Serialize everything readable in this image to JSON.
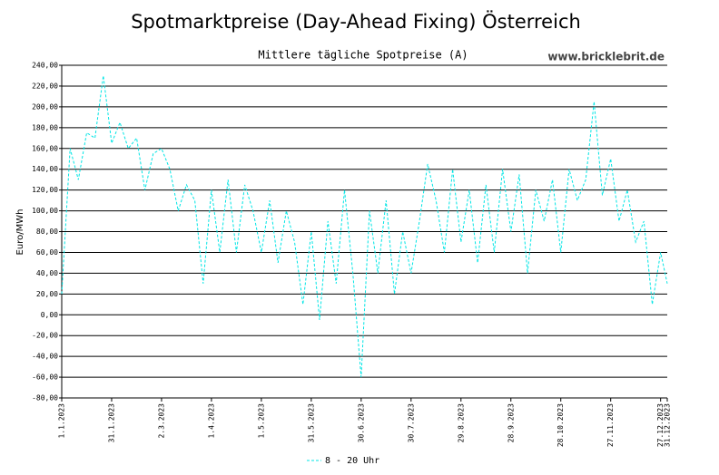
{
  "chart_data": {
    "type": "line",
    "title": "Spotmarktpreise (Day-Ahead Fixing) Österreich",
    "subtitle": "Mittlere tägliche Spotpreise (A)",
    "source": "www.bricklebrit.de",
    "ylabel": "Euro/MWh",
    "x": [
      "1.1.2023",
      "6.1.2023",
      "11.1.2023",
      "16.1.2023",
      "21.1.2023",
      "26.1.2023",
      "31.1.2023",
      "5.2.2023",
      "10.2.2023",
      "15.2.2023",
      "20.2.2023",
      "25.2.2023",
      "2.3.2023",
      "7.3.2023",
      "12.3.2023",
      "17.3.2023",
      "22.3.2023",
      "27.3.2023",
      "1.4.2023",
      "6.4.2023",
      "11.4.2023",
      "16.4.2023",
      "21.4.2023",
      "26.4.2023",
      "1.5.2023",
      "6.5.2023",
      "11.5.2023",
      "16.5.2023",
      "21.5.2023",
      "26.5.2023",
      "31.5.2023",
      "5.6.2023",
      "10.6.2023",
      "15.6.2023",
      "20.6.2023",
      "25.6.2023",
      "30.6.2023",
      "5.7.2023",
      "10.7.2023",
      "15.7.2023",
      "20.7.2023",
      "25.7.2023",
      "30.7.2023",
      "4.8.2023",
      "9.8.2023",
      "14.8.2023",
      "19.8.2023",
      "24.8.2023",
      "29.8.2023",
      "3.9.2023",
      "8.9.2023",
      "13.9.2023",
      "18.9.2023",
      "23.9.2023",
      "28.9.2023",
      "3.10.2023",
      "8.10.2023",
      "13.10.2023",
      "18.10.2023",
      "23.10.2023",
      "28.10.2023",
      "2.11.2023",
      "7.11.2023",
      "12.11.2023",
      "17.11.2023",
      "22.11.2023",
      "27.11.2023",
      "2.12.2023",
      "7.12.2023",
      "12.12.2023",
      "17.12.2023",
      "22.12.2023",
      "27.12.2023",
      "31.12.2023"
    ],
    "series": [
      {
        "name": "8 - 20 Uhr",
        "color": "#00e5e5",
        "values": [
          20,
          160,
          130,
          175,
          170,
          230,
          165,
          185,
          160,
          170,
          120,
          155,
          160,
          140,
          100,
          125,
          110,
          30,
          120,
          60,
          130,
          60,
          125,
          100,
          60,
          110,
          50,
          100,
          70,
          10,
          80,
          -5,
          90,
          30,
          120,
          40,
          -60,
          100,
          40,
          110,
          20,
          80,
          40,
          90,
          145,
          110,
          60,
          140,
          70,
          120,
          50,
          125,
          60,
          140,
          80,
          135,
          40,
          120,
          90,
          130,
          60,
          140,
          110,
          130,
          205,
          115,
          150,
          90,
          120,
          70,
          90,
          10,
          60,
          30
        ]
      }
    ],
    "xlim": [
      "1.1.2023",
      "31.12.2023"
    ],
    "xticks": [
      "1.1.2023",
      "31.1.2023",
      "2.3.2023",
      "1.4.2023",
      "1.5.2023",
      "31.5.2023",
      "30.6.2023",
      "30.7.2023",
      "29.8.2023",
      "28.9.2023",
      "28.10.2023",
      "27.11.2023",
      "27.12.2023",
      "31.12.2023"
    ],
    "ylim": [
      -80,
      240
    ],
    "yticks": [
      {
        "value": -80,
        "label": "-80,00"
      },
      {
        "value": -60,
        "label": "-60,00"
      },
      {
        "value": -40,
        "label": "-40,00"
      },
      {
        "value": -20,
        "label": "-20,00"
      },
      {
        "value": 0,
        "label": "0,00"
      },
      {
        "value": 20,
        "label": "20,00"
      },
      {
        "value": 40,
        "label": "40,00"
      },
      {
        "value": 60,
        "label": "60,00"
      },
      {
        "value": 80,
        "label": "80,00"
      },
      {
        "value": 100,
        "label": "100,00"
      },
      {
        "value": 120,
        "label": "120,00"
      },
      {
        "value": 140,
        "label": "140,00"
      },
      {
        "value": 160,
        "label": "160,00"
      },
      {
        "value": 180,
        "label": "180,00"
      },
      {
        "value": 200,
        "label": "200,00"
      },
      {
        "value": 220,
        "label": "220,00"
      },
      {
        "value": 240,
        "label": "240,00"
      }
    ],
    "grid": true
  }
}
